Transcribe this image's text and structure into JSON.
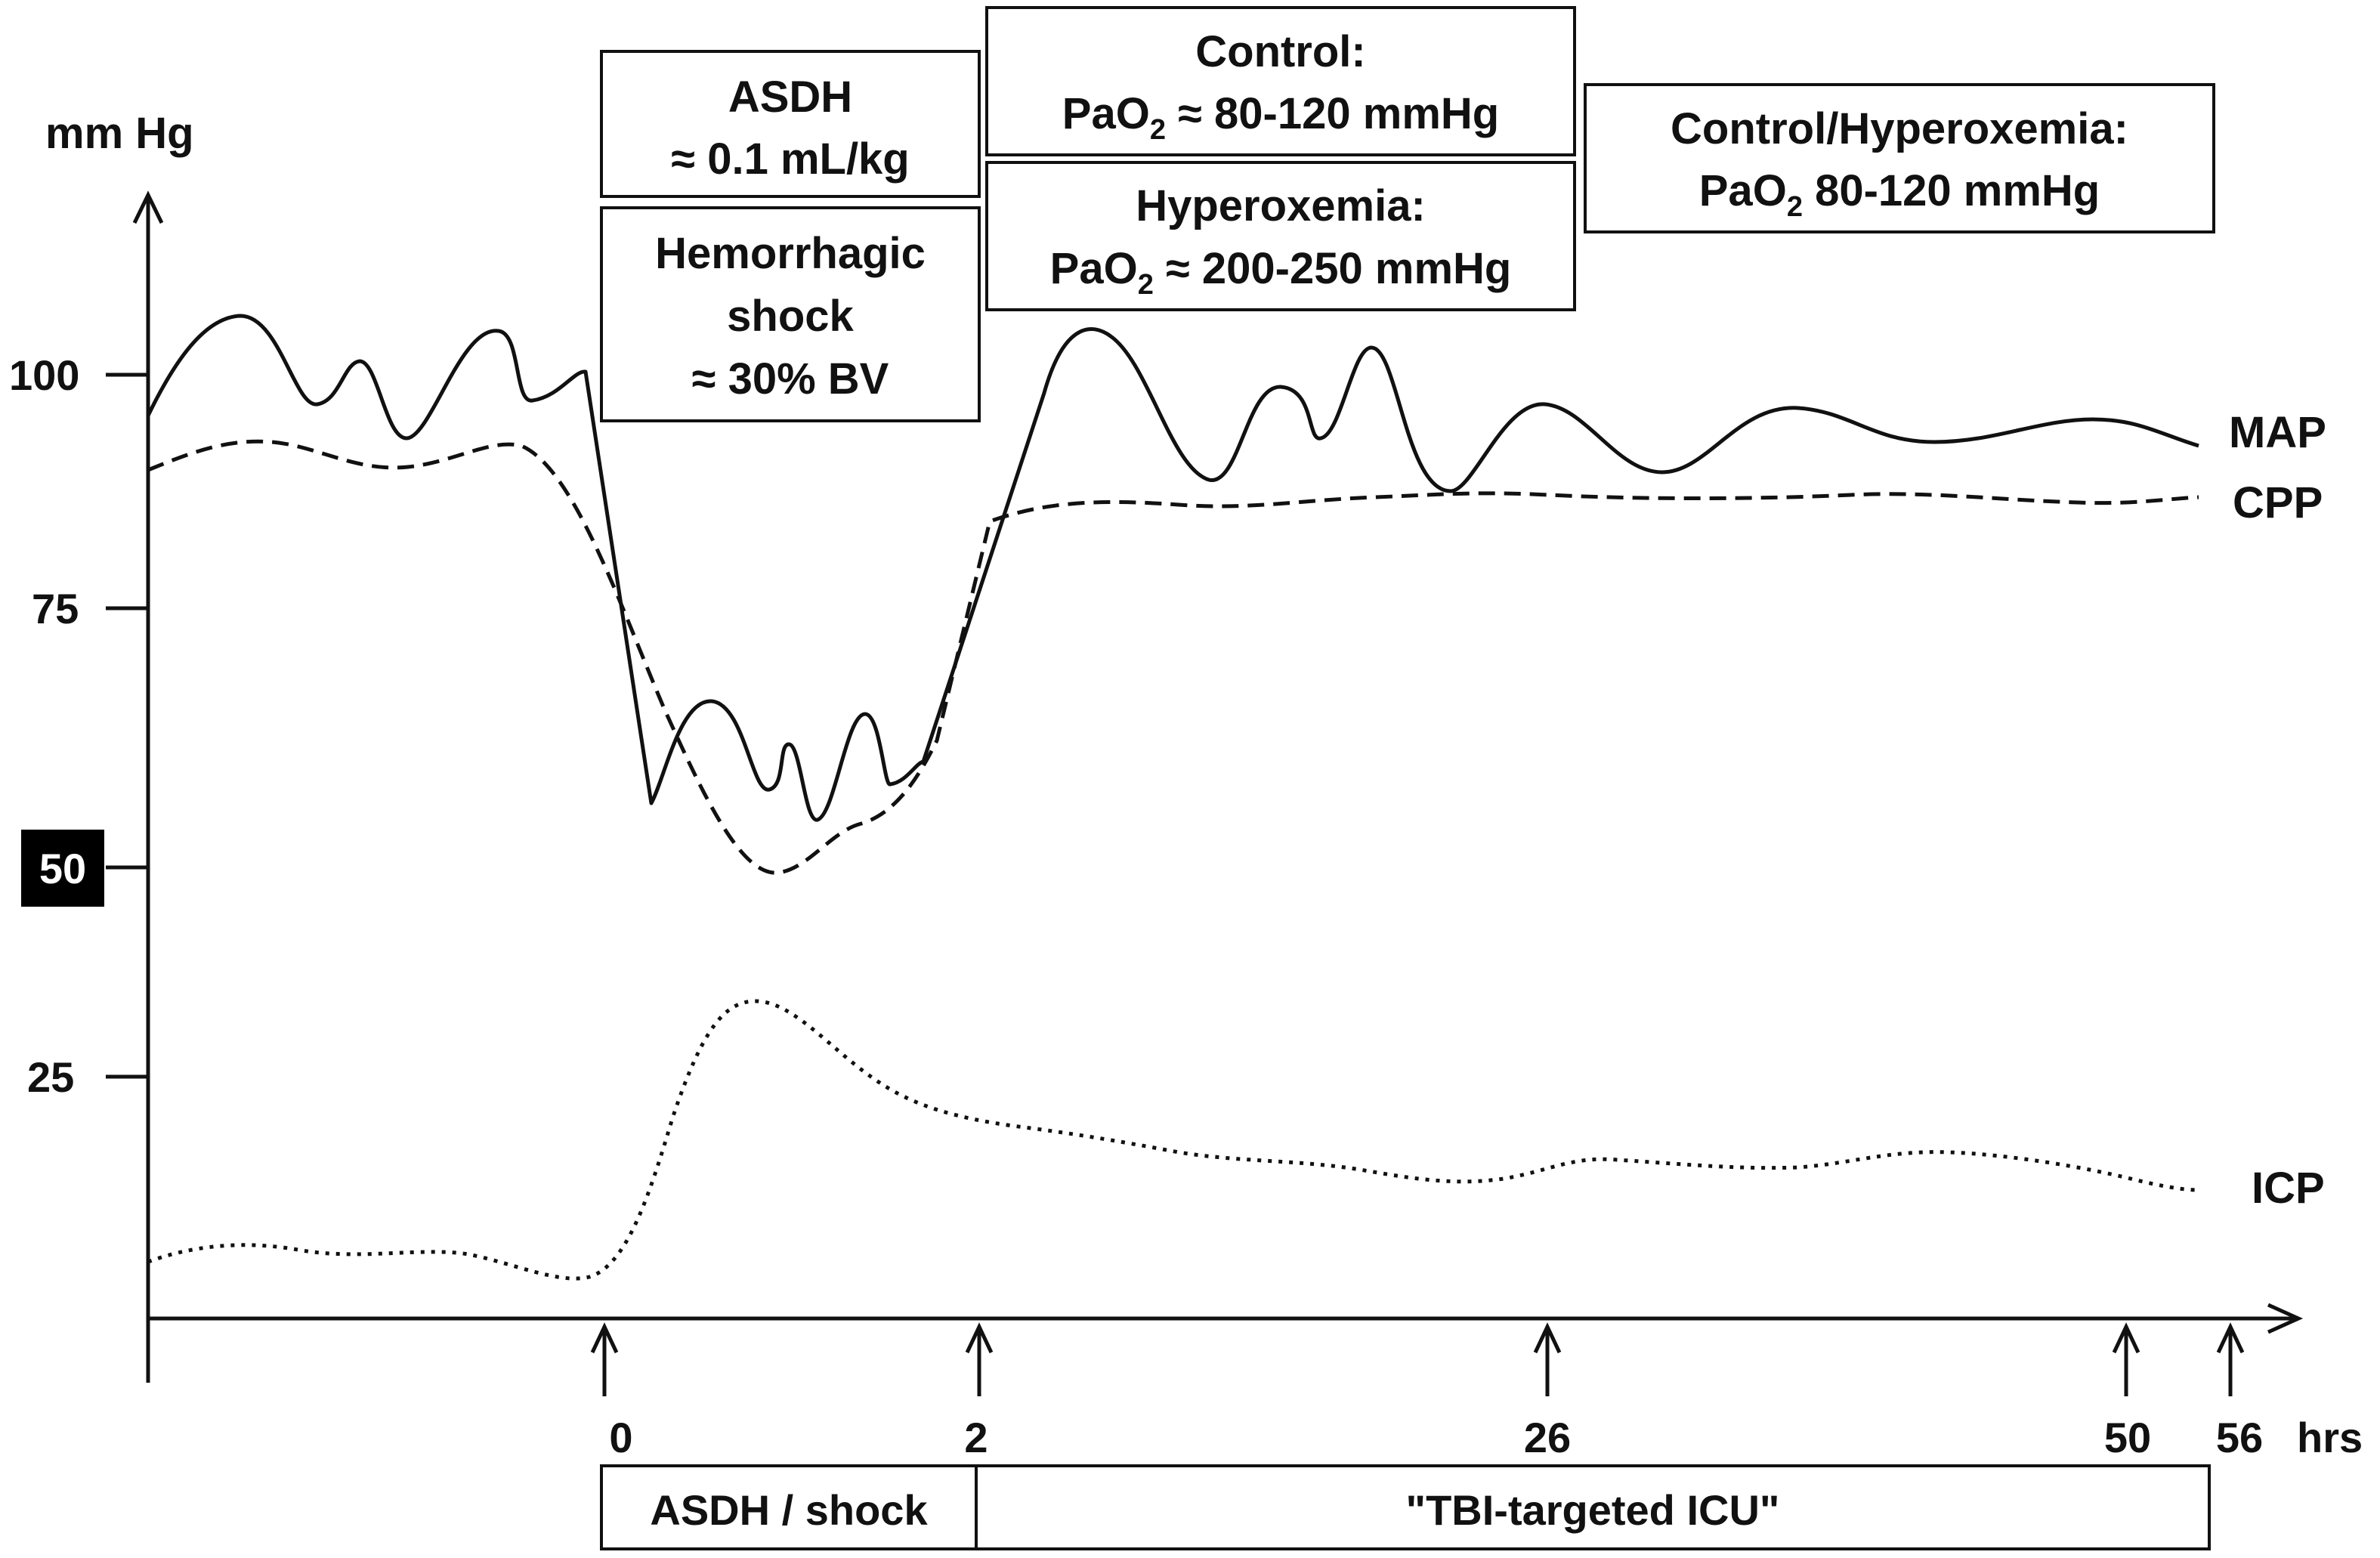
{
  "y_axis": {
    "unit_label": "mm Hg",
    "ticks": [
      {
        "value": 100,
        "label": "100",
        "highlight": false
      },
      {
        "value": 75,
        "label": "75",
        "highlight": false
      },
      {
        "value": 50,
        "label": "50",
        "highlight": true
      },
      {
        "value": 25,
        "label": "25",
        "highlight": false
      }
    ]
  },
  "x_axis": {
    "unit_label": "hrs",
    "markers": [
      {
        "label": "0"
      },
      {
        "label": "2"
      },
      {
        "label": "26"
      },
      {
        "label": "50"
      },
      {
        "label": "56"
      }
    ]
  },
  "series": {
    "map": {
      "label": "MAP",
      "style": "solid"
    },
    "cpp": {
      "label": "CPP",
      "style": "dashed"
    },
    "icp": {
      "label": "ICP",
      "style": "dotted"
    }
  },
  "boxes": {
    "asdh": {
      "line1": "ASDH",
      "line2": "≈ 0.1 mL/kg"
    },
    "shock": {
      "line1": "Hemorrhagic",
      "line2": "shock",
      "line3": "≈ 30% BV"
    },
    "control": {
      "line1": "Control:",
      "line2_pre": "PaO",
      "line2_sub": "2",
      "line2_post": " ≈ 80-120 mmHg"
    },
    "hyperoxemia": {
      "line1": "Hyperoxemia:",
      "line2_pre": "PaO",
      "line2_sub": "2",
      "line2_post": " ≈ 200-250 mmHg"
    },
    "control_hyperoxemia": {
      "line1": "Control/Hyperoxemia:",
      "line2_pre": "PaO",
      "line2_sub": "2",
      "line2_post": " 80-120 mmHg"
    }
  },
  "phases": {
    "asdh_shock": "ASDH / shock",
    "icu": "\"TBI-targeted ICU\""
  },
  "colors": {
    "ink": "#111111",
    "background": "#ffffff",
    "highlight_bg": "#000000",
    "highlight_fg": "#ffffff"
  }
}
